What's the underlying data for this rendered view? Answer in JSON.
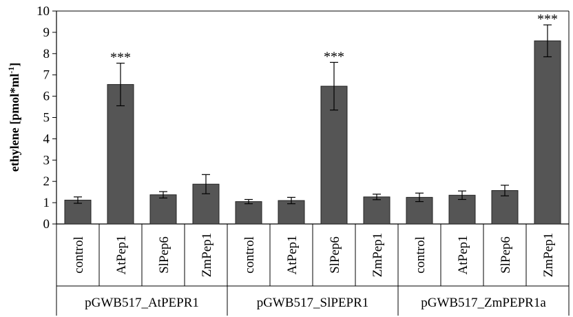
{
  "chart_data": {
    "type": "bar",
    "ylabel": "ethylene [pmol*ml",
    "ylabel_superscript": "-1",
    "ylabel_suffix": "]",
    "ylim": [
      0,
      10
    ],
    "yticks": [
      "0",
      "1",
      "2",
      "3",
      "4",
      "5",
      "6",
      "7",
      "8",
      "9",
      "10"
    ],
    "grid": false,
    "bar_color": "#555555",
    "groups": [
      {
        "label": "pGWB517_AtPEPR1",
        "categories": [
          "control",
          "AtPep1",
          "SlPep6",
          "ZmPep1"
        ],
        "values": [
          1.12,
          6.55,
          1.37,
          1.87
        ],
        "errors": [
          0.15,
          1.0,
          0.15,
          0.45
        ],
        "annotations": [
          "",
          "***",
          "",
          ""
        ]
      },
      {
        "label": "pGWB517_SlPEPR1",
        "categories": [
          "control",
          "AtPep1",
          "SlPep6",
          "ZmPep1"
        ],
        "values": [
          1.05,
          1.1,
          6.47,
          1.27
        ],
        "errors": [
          0.1,
          0.15,
          1.12,
          0.13
        ],
        "annotations": [
          "",
          "",
          "***",
          ""
        ]
      },
      {
        "label": "pGWB517_ZmPEPR1a",
        "categories": [
          "control",
          "AtPep1",
          "SlPep6",
          "ZmPep1"
        ],
        "values": [
          1.25,
          1.35,
          1.57,
          8.6
        ],
        "errors": [
          0.2,
          0.2,
          0.25,
          0.75
        ],
        "annotations": [
          "",
          "",
          "",
          "***"
        ]
      }
    ]
  }
}
